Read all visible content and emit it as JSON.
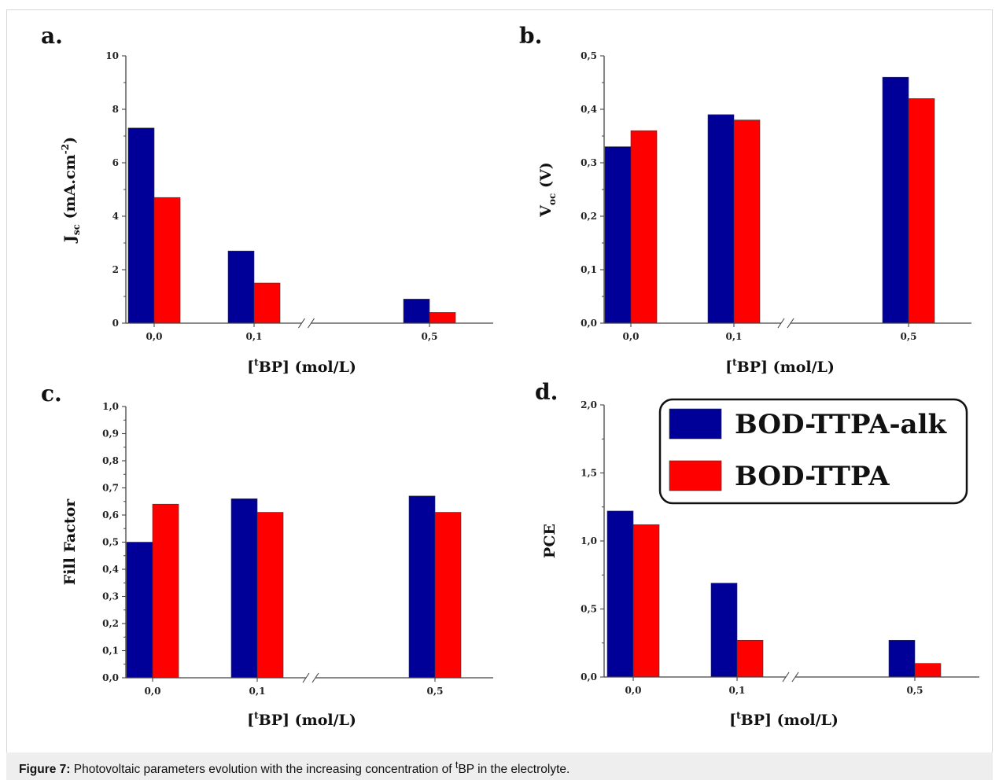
{
  "colors": {
    "series1": "#000099",
    "series2": "#ff0000",
    "axis": "#444444"
  },
  "legend": {
    "placement": "top-right",
    "entries": [
      "BOD-TTPA-alk",
      "BOD-TTPA"
    ]
  },
  "caption": {
    "label": "Figure 7:",
    "text_before": " Photovoltaic parameters evolution with the increasing concentration of ",
    "superscript": "t",
    "text_after": "BP in the electrolyte."
  },
  "chart_data": [
    {
      "type": "bar",
      "panel_label": "a.",
      "categories": [
        "0,0",
        "0,1",
        "0,5"
      ],
      "series": [
        {
          "name": "BOD-TTPA-alk",
          "values": [
            7.3,
            2.7,
            0.9
          ]
        },
        {
          "name": "BOD-TTPA",
          "values": [
            4.7,
            1.5,
            0.4
          ]
        }
      ],
      "ylabel": {
        "main": "J",
        "sub": "sc",
        "mid": " (mA.cm",
        "sup": "-2",
        "end": ")"
      },
      "xlabel": {
        "pre": "[",
        "sup": "t",
        "post": "BP] (mol/L)"
      },
      "ylim": [
        0,
        10
      ],
      "yticks": [
        "0",
        "2",
        "4",
        "6",
        "8",
        "10"
      ],
      "axis_break": true
    },
    {
      "type": "bar",
      "panel_label": "b.",
      "categories": [
        "0,0",
        "0,1",
        "0,5"
      ],
      "series": [
        {
          "name": "BOD-TTPA-alk",
          "values": [
            0.33,
            0.39,
            0.46
          ]
        },
        {
          "name": "BOD-TTPA",
          "values": [
            0.36,
            0.38,
            0.42
          ]
        }
      ],
      "ylabel": {
        "main": "V",
        "sub": "oc",
        "mid": " (V)",
        "sup": "",
        "end": ""
      },
      "xlabel": {
        "pre": "[",
        "sup": "t",
        "post": "BP] (mol/L)"
      },
      "ylim": [
        0,
        0.5
      ],
      "yticks": [
        "0,0",
        "0,1",
        "0,2",
        "0,3",
        "0,4",
        "0,5"
      ],
      "axis_break": true
    },
    {
      "type": "bar",
      "panel_label": "c.",
      "categories": [
        "0,0",
        "0,1",
        "0,5"
      ],
      "series": [
        {
          "name": "BOD-TTPA-alk",
          "values": [
            0.5,
            0.66,
            0.67
          ]
        },
        {
          "name": "BOD-TTPA",
          "values": [
            0.64,
            0.61,
            0.61
          ]
        }
      ],
      "ylabel": {
        "main": "Fill Factor",
        "sub": "",
        "mid": "",
        "sup": "",
        "end": ""
      },
      "xlabel": {
        "pre": "[",
        "sup": "t",
        "post": "BP] (mol/L)"
      },
      "ylim": [
        0,
        1
      ],
      "yticks": [
        "0,0",
        "0,1",
        "0,2",
        "0,3",
        "0,4",
        "0,5",
        "0,6",
        "0,7",
        "0,8",
        "0,9",
        "1,0"
      ],
      "axis_break": true
    },
    {
      "type": "bar",
      "panel_label": "d.",
      "categories": [
        "0,0",
        "0,1",
        "0,5"
      ],
      "series": [
        {
          "name": "BOD-TTPA-alk",
          "values": [
            1.22,
            0.69,
            0.27
          ]
        },
        {
          "name": "BOD-TTPA",
          "values": [
            1.12,
            0.27,
            0.1
          ]
        }
      ],
      "ylabel": {
        "main": "PCE",
        "sub": "",
        "mid": "",
        "sup": "",
        "end": ""
      },
      "xlabel": {
        "pre": "[",
        "sup": "t",
        "post": "BP] (mol/L)"
      },
      "ylim": [
        0,
        2
      ],
      "yticks": [
        "0,0",
        "0,5",
        "1,0",
        "1,5",
        "2,0"
      ],
      "axis_break": true
    }
  ]
}
